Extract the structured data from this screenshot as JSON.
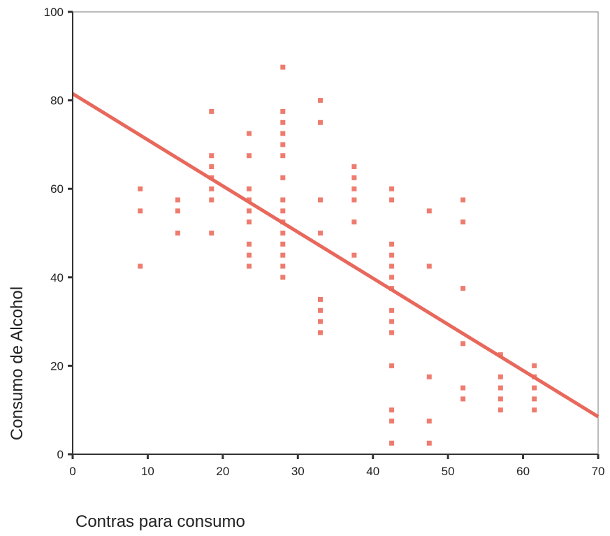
{
  "chart_data": {
    "type": "scatter",
    "title": "",
    "xlabel": "Contras para consumo",
    "ylabel": "Consumo de Alcohol",
    "xlim": [
      0,
      70
    ],
    "ylim": [
      0,
      100
    ],
    "xticks": [
      0,
      10,
      20,
      30,
      40,
      50,
      60,
      70
    ],
    "yticks": [
      0,
      20,
      40,
      60,
      80,
      100
    ],
    "xtick_labels": [
      "0",
      "10",
      "20",
      "30",
      "40",
      "50",
      "60",
      "70"
    ],
    "ytick_labels": [
      "0",
      "20",
      "40",
      "60",
      "80",
      "100"
    ],
    "grid": false,
    "legend": "none",
    "colors": {
      "points": "#ee7c6e",
      "fit_line": "#e8685c",
      "axis": "#333333"
    },
    "points": [
      [
        9,
        60
      ],
      [
        9,
        55
      ],
      [
        9,
        42.5
      ],
      [
        14,
        57.5
      ],
      [
        14,
        55
      ],
      [
        14,
        50
      ],
      [
        18.5,
        77.5
      ],
      [
        18.5,
        67.5
      ],
      [
        18.5,
        65
      ],
      [
        18.5,
        62.5
      ],
      [
        18.5,
        60
      ],
      [
        18.5,
        57.5
      ],
      [
        18.5,
        50
      ],
      [
        23.5,
        72.5
      ],
      [
        23.5,
        67.5
      ],
      [
        23.5,
        60
      ],
      [
        23.5,
        57.5
      ],
      [
        23.5,
        55
      ],
      [
        23.5,
        52.5
      ],
      [
        23.5,
        47.5
      ],
      [
        23.5,
        45
      ],
      [
        23.5,
        42.5
      ],
      [
        28,
        87.5
      ],
      [
        28,
        77.5
      ],
      [
        28,
        75
      ],
      [
        28,
        72.5
      ],
      [
        28,
        70
      ],
      [
        28,
        67.5
      ],
      [
        28,
        62.5
      ],
      [
        28,
        57.5
      ],
      [
        28,
        55
      ],
      [
        28,
        52.5
      ],
      [
        28,
        50
      ],
      [
        28,
        47.5
      ],
      [
        28,
        45
      ],
      [
        28,
        42.5
      ],
      [
        28,
        40
      ],
      [
        33,
        80
      ],
      [
        33,
        75
      ],
      [
        33,
        57.5
      ],
      [
        33,
        50
      ],
      [
        33,
        35
      ],
      [
        33,
        32.5
      ],
      [
        33,
        30
      ],
      [
        33,
        27.5
      ],
      [
        37.5,
        65
      ],
      [
        37.5,
        62.5
      ],
      [
        37.5,
        60
      ],
      [
        37.5,
        57.5
      ],
      [
        37.5,
        52.5
      ],
      [
        37.5,
        45
      ],
      [
        42.5,
        60
      ],
      [
        42.5,
        57.5
      ],
      [
        42.5,
        47.5
      ],
      [
        42.5,
        45
      ],
      [
        42.5,
        42.5
      ],
      [
        42.5,
        40
      ],
      [
        42.5,
        37.5
      ],
      [
        42.5,
        32.5
      ],
      [
        42.5,
        30
      ],
      [
        42.5,
        27.5
      ],
      [
        42.5,
        20
      ],
      [
        42.5,
        10
      ],
      [
        42.5,
        7.5
      ],
      [
        42.5,
        2.5
      ],
      [
        47.5,
        55
      ],
      [
        47.5,
        42.5
      ],
      [
        47.5,
        17.5
      ],
      [
        47.5,
        7.5
      ],
      [
        47.5,
        2.5
      ],
      [
        52,
        57.5
      ],
      [
        52,
        52.5
      ],
      [
        52,
        37.5
      ],
      [
        52,
        25
      ],
      [
        52,
        15
      ],
      [
        52,
        12.5
      ],
      [
        57,
        22.5
      ],
      [
        57,
        17.5
      ],
      [
        57,
        15
      ],
      [
        57,
        12.5
      ],
      [
        57,
        10
      ],
      [
        61.5,
        20
      ],
      [
        61.5,
        17.5
      ],
      [
        61.5,
        15
      ],
      [
        61.5,
        12.5
      ],
      [
        61.5,
        10
      ]
    ],
    "fit_line": {
      "x": [
        0,
        70
      ],
      "y": [
        81.5,
        8.5
      ]
    }
  }
}
